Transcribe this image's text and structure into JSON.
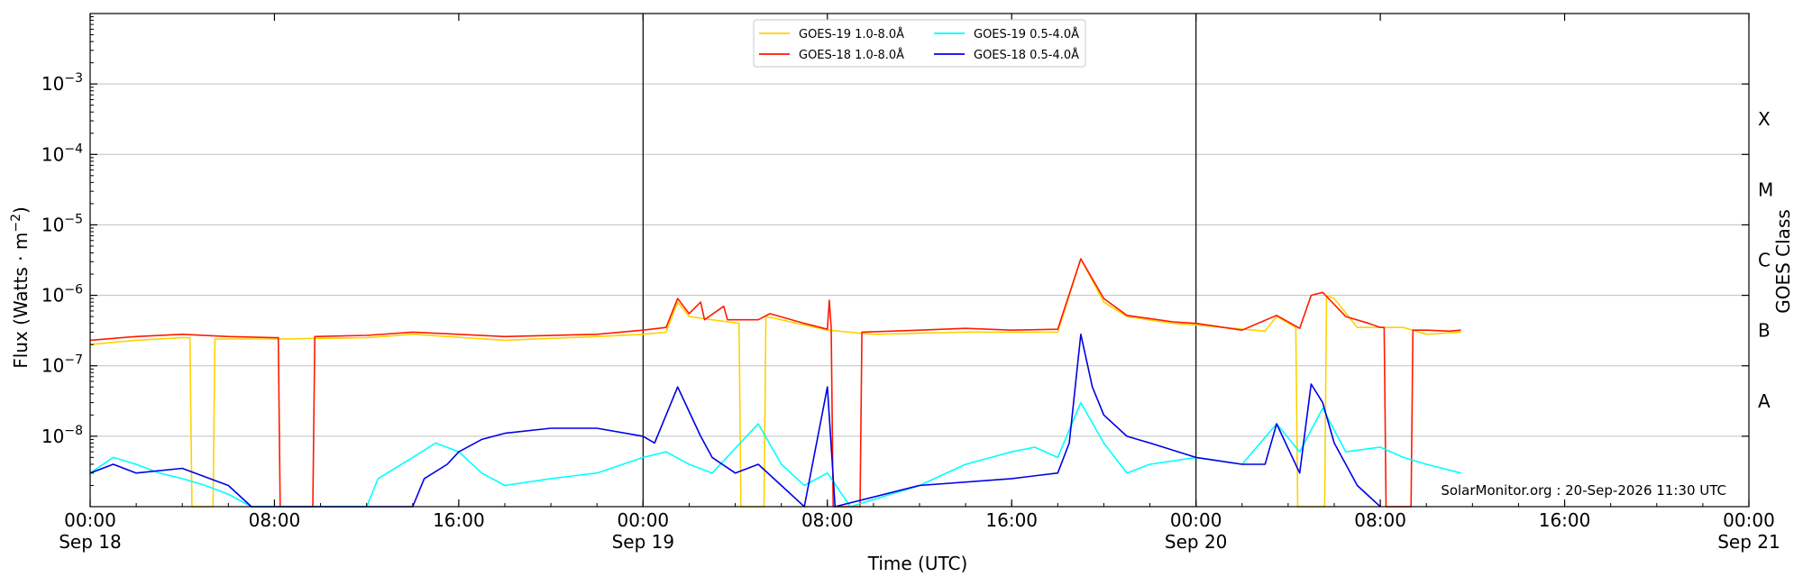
{
  "chart_data": {
    "type": "line",
    "y_scale": "log",
    "ylabel_prefix": "Flux (Watts · m",
    "ylabel_exp": "−2",
    "ylabel_suffix": ")",
    "xlabel": "Time (UTC)",
    "ylabel_right": "GOES Class",
    "credit": "SolarMonitor.org : 20-Sep-2026 11:30 UTC",
    "xlim": [
      "2026-09-18 00:00",
      "2026-09-21 00:00"
    ],
    "ylim": [
      1e-09,
      0.01
    ],
    "y_ticks": [
      {
        "value": 1e-08,
        "base": "10",
        "exp": "−8"
      },
      {
        "value": 1e-07,
        "base": "10",
        "exp": "−7"
      },
      {
        "value": 1e-06,
        "base": "10",
        "exp": "−6"
      },
      {
        "value": 1e-05,
        "base": "10",
        "exp": "−5"
      },
      {
        "value": 0.0001,
        "base": "10",
        "exp": "−4"
      },
      {
        "value": 0.001,
        "base": "10",
        "exp": "−3"
      }
    ],
    "x_ticks": [
      {
        "time": "2026-09-18 00:00",
        "label": "00:00",
        "date": "Sep 18"
      },
      {
        "time": "2026-09-18 08:00",
        "label": "08:00",
        "date": ""
      },
      {
        "time": "2026-09-18 16:00",
        "label": "16:00",
        "date": ""
      },
      {
        "time": "2026-09-19 00:00",
        "label": "00:00",
        "date": "Sep 19"
      },
      {
        "time": "2026-09-19 08:00",
        "label": "08:00",
        "date": ""
      },
      {
        "time": "2026-09-19 16:00",
        "label": "16:00",
        "date": ""
      },
      {
        "time": "2026-09-20 00:00",
        "label": "00:00",
        "date": "Sep 20"
      },
      {
        "time": "2026-09-20 08:00",
        "label": "08:00",
        "date": ""
      },
      {
        "time": "2026-09-20 16:00",
        "label": "16:00",
        "date": ""
      },
      {
        "time": "2026-09-21 00:00",
        "label": "00:00",
        "date": "Sep 21"
      }
    ],
    "day_boundaries": [
      "2026-09-19 00:00",
      "2026-09-20 00:00"
    ],
    "goes_classes": [
      {
        "label": "X",
        "flux": 0.0001
      },
      {
        "label": "M",
        "flux": 1e-05
      },
      {
        "label": "C",
        "flux": 1e-06
      },
      {
        "label": "B",
        "flux": 1e-07
      },
      {
        "label": "A",
        "flux": 1e-08
      }
    ],
    "grid": true,
    "legend_position": "top-center",
    "series": [
      {
        "name": "GOES-19 1.0-8.0Å",
        "color": "#ffd200",
        "points": [
          [
            "2026-09-18 00:00",
            2e-07
          ],
          [
            "2026-09-18 02:00",
            2.3e-07
          ],
          [
            "2026-09-18 04:00",
            2.5e-07
          ],
          [
            "2026-09-18 04:20",
            2.5e-07
          ],
          [
            "2026-09-18 04:25",
            1e-09
          ],
          [
            "2026-09-18 05:20",
            1e-09
          ],
          [
            "2026-09-18 05:25",
            2.4e-07
          ],
          [
            "2026-09-18 08:00",
            2.4e-07
          ],
          [
            "2026-09-18 12:00",
            2.5e-07
          ],
          [
            "2026-09-18 14:00",
            2.8e-07
          ],
          [
            "2026-09-18 18:00",
            2.3e-07
          ],
          [
            "2026-09-18 22:00",
            2.6e-07
          ],
          [
            "2026-09-19 00:00",
            2.8e-07
          ],
          [
            "2026-09-19 01:00",
            3e-07
          ],
          [
            "2026-09-19 01:30",
            8e-07
          ],
          [
            "2026-09-19 02:00",
            5e-07
          ],
          [
            "2026-09-19 03:00",
            4.5e-07
          ],
          [
            "2026-09-19 04:10",
            4e-07
          ],
          [
            "2026-09-19 04:15",
            1e-09
          ],
          [
            "2026-09-19 05:15",
            1e-09
          ],
          [
            "2026-09-19 05:20",
            5e-07
          ],
          [
            "2026-09-19 06:00",
            4.5e-07
          ],
          [
            "2026-09-19 08:00",
            3.2e-07
          ],
          [
            "2026-09-19 10:00",
            2.8e-07
          ],
          [
            "2026-09-19 14:00",
            3e-07
          ],
          [
            "2026-09-19 18:00",
            3e-07
          ],
          [
            "2026-09-19 19:00",
            3.3e-06
          ],
          [
            "2026-09-19 20:00",
            8e-07
          ],
          [
            "2026-09-19 21:00",
            5e-07
          ],
          [
            "2026-09-19 23:00",
            4e-07
          ],
          [
            "2026-09-20 00:00",
            3.8e-07
          ],
          [
            "2026-09-20 03:00",
            3.1e-07
          ],
          [
            "2026-09-20 03:30",
            5e-07
          ],
          [
            "2026-09-20 04:20",
            3.5e-07
          ],
          [
            "2026-09-20 04:25",
            1e-09
          ],
          [
            "2026-09-20 05:35",
            1e-09
          ],
          [
            "2026-09-20 05:40",
            1e-06
          ],
          [
            "2026-09-20 06:00",
            9e-07
          ],
          [
            "2026-09-20 07:00",
            3.5e-07
          ],
          [
            "2026-09-20 09:00",
            3.5e-07
          ],
          [
            "2026-09-20 10:00",
            2.8e-07
          ],
          [
            "2026-09-20 11:30",
            3e-07
          ]
        ]
      },
      {
        "name": "GOES-18 1.0-8.0Å",
        "color": "#ff1a00",
        "points": [
          [
            "2026-09-18 00:00",
            2.3e-07
          ],
          [
            "2026-09-18 02:00",
            2.6e-07
          ],
          [
            "2026-09-18 04:00",
            2.8e-07
          ],
          [
            "2026-09-18 06:00",
            2.6e-07
          ],
          [
            "2026-09-18 08:00",
            2.5e-07
          ],
          [
            "2026-09-18 08:10",
            2.5e-07
          ],
          [
            "2026-09-18 08:15",
            1e-09
          ],
          [
            "2026-09-18 09:40",
            1e-09
          ],
          [
            "2026-09-18 09:45",
            2.6e-07
          ],
          [
            "2026-09-18 12:00",
            2.7e-07
          ],
          [
            "2026-09-18 14:00",
            3e-07
          ],
          [
            "2026-09-18 18:00",
            2.6e-07
          ],
          [
            "2026-09-18 22:00",
            2.8e-07
          ],
          [
            "2026-09-19 00:00",
            3.2e-07
          ],
          [
            "2026-09-19 01:00",
            3.5e-07
          ],
          [
            "2026-09-19 01:30",
            9e-07
          ],
          [
            "2026-09-19 02:00",
            5.5e-07
          ],
          [
            "2026-09-19 02:30",
            8e-07
          ],
          [
            "2026-09-19 02:40",
            4.5e-07
          ],
          [
            "2026-09-19 03:30",
            7e-07
          ],
          [
            "2026-09-19 03:40",
            4.5e-07
          ],
          [
            "2026-09-19 05:00",
            4.5e-07
          ],
          [
            "2026-09-19 05:30",
            5.5e-07
          ],
          [
            "2026-09-19 07:00",
            4e-07
          ],
          [
            "2026-09-19 08:00",
            3.3e-07
          ],
          [
            "2026-09-19 08:05",
            8.5e-07
          ],
          [
            "2026-09-19 08:10",
            3.5e-07
          ],
          [
            "2026-09-19 08:15",
            1e-09
          ],
          [
            "2026-09-19 09:25",
            1e-09
          ],
          [
            "2026-09-19 09:30",
            3e-07
          ],
          [
            "2026-09-19 12:00",
            3.2e-07
          ],
          [
            "2026-09-19 14:00",
            3.4e-07
          ],
          [
            "2026-09-19 16:00",
            3.2e-07
          ],
          [
            "2026-09-19 18:00",
            3.3e-07
          ],
          [
            "2026-09-19 19:00",
            3.3e-06
          ],
          [
            "2026-09-19 20:00",
            9e-07
          ],
          [
            "2026-09-19 21:00",
            5.2e-07
          ],
          [
            "2026-09-19 23:00",
            4.2e-07
          ],
          [
            "2026-09-20 00:00",
            4e-07
          ],
          [
            "2026-09-20 02:00",
            3.2e-07
          ],
          [
            "2026-09-20 03:30",
            5.2e-07
          ],
          [
            "2026-09-20 04:30",
            3.4e-07
          ],
          [
            "2026-09-20 05:00",
            1e-06
          ],
          [
            "2026-09-20 05:30",
            1.1e-06
          ],
          [
            "2026-09-20 06:30",
            5e-07
          ],
          [
            "2026-09-20 07:30",
            4e-07
          ],
          [
            "2026-09-20 08:00",
            3.5e-07
          ],
          [
            "2026-09-20 08:10",
            3.5e-07
          ],
          [
            "2026-09-20 08:15",
            1e-09
          ],
          [
            "2026-09-20 09:20",
            1e-09
          ],
          [
            "2026-09-20 09:25",
            3.2e-07
          ],
          [
            "2026-09-20 10:00",
            3.2e-07
          ],
          [
            "2026-09-20 11:00",
            3.1e-07
          ],
          [
            "2026-09-20 11:30",
            3.2e-07
          ]
        ]
      },
      {
        "name": "GOES-19 0.5-4.0Å",
        "color": "#00ffff",
        "points": [
          [
            "2026-09-18 00:00",
            3e-09
          ],
          [
            "2026-09-18 01:00",
            5e-09
          ],
          [
            "2026-09-18 02:00",
            4e-09
          ],
          [
            "2026-09-18 03:00",
            3e-09
          ],
          [
            "2026-09-18 04:00",
            2.5e-09
          ],
          [
            "2026-09-18 05:00",
            2e-09
          ],
          [
            "2026-09-18 06:00",
            1.5e-09
          ],
          [
            "2026-09-18 07:00",
            1e-09
          ],
          [
            "2026-09-18 12:00",
            1e-09
          ],
          [
            "2026-09-18 12:30",
            2.5e-09
          ],
          [
            "2026-09-18 14:00",
            5e-09
          ],
          [
            "2026-09-18 15:00",
            8e-09
          ],
          [
            "2026-09-18 16:00",
            6e-09
          ],
          [
            "2026-09-18 17:00",
            3e-09
          ],
          [
            "2026-09-18 18:00",
            2e-09
          ],
          [
            "2026-09-18 20:00",
            2.5e-09
          ],
          [
            "2026-09-18 22:00",
            3e-09
          ],
          [
            "2026-09-19 00:00",
            5e-09
          ],
          [
            "2026-09-19 01:00",
            6e-09
          ],
          [
            "2026-09-19 02:00",
            4e-09
          ],
          [
            "2026-09-19 03:00",
            3e-09
          ],
          [
            "2026-09-19 05:00",
            1.5e-08
          ],
          [
            "2026-09-19 06:00",
            4e-09
          ],
          [
            "2026-09-19 07:00",
            2e-09
          ],
          [
            "2026-09-19 08:00",
            3e-09
          ],
          [
            "2026-09-19 09:00",
            1e-09
          ],
          [
            "2026-09-19 12:00",
            2e-09
          ],
          [
            "2026-09-19 14:00",
            4e-09
          ],
          [
            "2026-09-19 16:00",
            6e-09
          ],
          [
            "2026-09-19 17:00",
            7e-09
          ],
          [
            "2026-09-19 18:00",
            5e-09
          ],
          [
            "2026-09-19 19:00",
            3e-08
          ],
          [
            "2026-09-19 20:00",
            8e-09
          ],
          [
            "2026-09-19 21:00",
            3e-09
          ],
          [
            "2026-09-19 22:00",
            4e-09
          ],
          [
            "2026-09-20 00:00",
            5e-09
          ],
          [
            "2026-09-20 02:00",
            4e-09
          ],
          [
            "2026-09-20 03:30",
            1.5e-08
          ],
          [
            "2026-09-20 04:30",
            6e-09
          ],
          [
            "2026-09-20 05:30",
            2.5e-08
          ],
          [
            "2026-09-20 06:30",
            6e-09
          ],
          [
            "2026-09-20 08:00",
            7e-09
          ],
          [
            "2026-09-20 09:00",
            5e-09
          ],
          [
            "2026-09-20 10:00",
            4e-09
          ],
          [
            "2026-09-20 11:30",
            3e-09
          ]
        ]
      },
      {
        "name": "GOES-18 0.5-4.0Å",
        "color": "#0000e6",
        "points": [
          [
            "2026-09-18 00:00",
            3e-09
          ],
          [
            "2026-09-18 01:00",
            4e-09
          ],
          [
            "2026-09-18 02:00",
            3e-09
          ],
          [
            "2026-09-18 04:00",
            3.5e-09
          ],
          [
            "2026-09-18 06:00",
            2e-09
          ],
          [
            "2026-09-18 07:00",
            1e-09
          ],
          [
            "2026-09-18 14:00",
            1e-09
          ],
          [
            "2026-09-18 14:30",
            2.5e-09
          ],
          [
            "2026-09-18 15:30",
            4e-09
          ],
          [
            "2026-09-18 16:00",
            6e-09
          ],
          [
            "2026-09-18 17:00",
            9e-09
          ],
          [
            "2026-09-18 18:00",
            1.1e-08
          ],
          [
            "2026-09-18 20:00",
            1.3e-08
          ],
          [
            "2026-09-18 22:00",
            1.3e-08
          ],
          [
            "2026-09-19 00:00",
            1e-08
          ],
          [
            "2026-09-19 00:30",
            8e-09
          ],
          [
            "2026-09-19 01:30",
            5e-08
          ],
          [
            "2026-09-19 02:30",
            1e-08
          ],
          [
            "2026-09-19 03:00",
            5e-09
          ],
          [
            "2026-09-19 04:00",
            3e-09
          ],
          [
            "2026-09-19 05:00",
            4e-09
          ],
          [
            "2026-09-19 06:00",
            2e-09
          ],
          [
            "2026-09-19 07:00",
            1e-09
          ],
          [
            "2026-09-19 08:00",
            5e-08
          ],
          [
            "2026-09-19 08:20",
            1e-09
          ],
          [
            "2026-09-19 12:00",
            2e-09
          ],
          [
            "2026-09-19 16:00",
            2.5e-09
          ],
          [
            "2026-09-19 18:00",
            3e-09
          ],
          [
            "2026-09-19 18:30",
            8e-09
          ],
          [
            "2026-09-19 19:00",
            2.8e-07
          ],
          [
            "2026-09-19 19:30",
            5e-08
          ],
          [
            "2026-09-19 20:00",
            2e-08
          ],
          [
            "2026-09-19 21:00",
            1e-08
          ],
          [
            "2026-09-19 22:00",
            8e-09
          ],
          [
            "2026-09-20 00:00",
            5e-09
          ],
          [
            "2026-09-20 02:00",
            4e-09
          ],
          [
            "2026-09-20 03:00",
            4e-09
          ],
          [
            "2026-09-20 03:30",
            1.5e-08
          ],
          [
            "2026-09-20 04:30",
            3e-09
          ],
          [
            "2026-09-20 05:00",
            5.5e-08
          ],
          [
            "2026-09-20 05:30",
            3e-08
          ],
          [
            "2026-09-20 06:00",
            8e-09
          ],
          [
            "2026-09-20 07:00",
            2e-09
          ],
          [
            "2026-09-20 08:00",
            1e-09
          ]
        ]
      }
    ]
  }
}
